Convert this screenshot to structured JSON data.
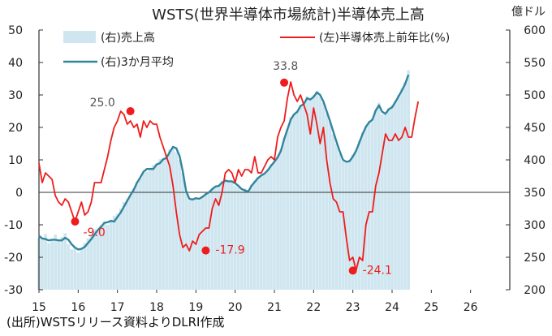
{
  "chart_data": {
    "type": "bar+line",
    "title": "WSTS(世界半導体市場統計)半導体売上高",
    "right_axis_unit": "億ドル",
    "source": "(出所)WSTSリリース資料よりDLRI作成",
    "x_ticks": [
      "15",
      "16",
      "17",
      "18",
      "19",
      "20",
      "21",
      "22",
      "23",
      "24",
      "25",
      "26"
    ],
    "x_range": [
      2015.0,
      2027.0
    ],
    "left_axis": {
      "ticks": [
        50,
        40,
        30,
        20,
        10,
        0,
        -10,
        -20,
        -30
      ],
      "range": [
        -30,
        50
      ]
    },
    "right_axis": {
      "ticks": [
        600,
        550,
        500,
        450,
        400,
        350,
        300,
        250,
        200
      ],
      "range": [
        200,
        600
      ]
    },
    "legend": [
      {
        "key": "sales",
        "label": "(右)売上高"
      },
      {
        "key": "yoy",
        "label": "(左)半導体売上前年比(%)"
      },
      {
        "key": "ma3",
        "label": "(右)3か月平均"
      }
    ],
    "colors": {
      "sales": "#cfe6f0",
      "yoy": "#ee1c1c",
      "ma3": "#31859c",
      "axis": "#333333"
    },
    "annotations": [
      {
        "label": "25.0",
        "t": 2017.33,
        "value": 25.0,
        "color": "#555555"
      },
      {
        "label": "-9.0",
        "t": 2015.92,
        "value": -9.0,
        "color": "#ee1c1c"
      },
      {
        "label": "-17.9",
        "t": 2019.25,
        "value": -17.9,
        "color": "#ee1c1c"
      },
      {
        "label": "33.8",
        "t": 2021.25,
        "value": 33.8,
        "color": "#555555"
      },
      {
        "label": "-24.1",
        "t": 2023.0,
        "value": -24.1,
        "color": "#ee1c1c"
      }
    ],
    "series": [
      {
        "key": "yoy",
        "axis": "left",
        "t0": 2015.0,
        "step": 0.08333,
        "values": [
          9,
          3,
          6,
          5,
          4,
          -1,
          -3,
          -4,
          -2,
          -3,
          -6,
          -9,
          -6,
          -3,
          -7,
          -6,
          -3,
          3,
          3,
          3,
          7,
          11,
          16,
          20,
          22,
          25,
          24,
          21,
          22,
          20,
          21,
          17,
          22,
          20,
          22,
          21,
          21,
          17,
          14,
          11,
          8,
          2,
          -6,
          -13,
          -17,
          -16,
          -18,
          -15,
          -16,
          -13,
          -12,
          -11,
          -11,
          -5,
          -2,
          -4,
          0,
          6,
          7,
          6,
          3,
          7,
          5,
          7,
          7,
          6,
          11,
          6,
          6,
          8,
          10,
          11,
          10,
          17,
          20,
          22,
          29,
          34,
          30,
          28,
          30,
          27,
          24,
          18,
          26,
          21,
          15,
          20,
          10,
          3,
          -2,
          -3,
          -6,
          -6,
          -14,
          -21,
          -20,
          -24,
          -20,
          -21,
          -10,
          -6,
          -6,
          2,
          6,
          12,
          18,
          16,
          16,
          18,
          16,
          17,
          20,
          17,
          17,
          23,
          28
        ]
      },
      {
        "key": "ma3",
        "axis": "right",
        "t0": 2015.0,
        "step": 0.08333,
        "values": [
          283,
          279,
          278,
          276,
          277,
          277,
          276,
          276,
          280,
          277,
          270,
          265,
          262,
          263,
          266,
          272,
          278,
          285,
          292,
          297,
          303,
          304,
          306,
          305,
          312,
          319,
          328,
          337,
          346,
          354,
          365,
          373,
          382,
          386,
          386,
          386,
          393,
          395,
          401,
          403,
          412,
          420,
          418,
          406,
          382,
          352,
          340,
          339,
          341,
          340,
          343,
          347,
          350,
          355,
          359,
          360,
          365,
          368,
          367,
          367,
          364,
          360,
          355,
          353,
          351,
          360,
          366,
          372,
          376,
          379,
          384,
          391,
          397,
          404,
          414,
          432,
          447,
          462,
          470,
          474,
          483,
          486,
          495,
          493,
          497,
          504,
          500,
          490,
          475,
          460,
          444,
          428,
          413,
          400,
          397,
          398,
          405,
          414,
          427,
          440,
          451,
          458,
          462,
          476,
          484,
          474,
          471,
          478,
          481,
          489,
          498,
          507,
          517,
          531
        ]
      },
      {
        "key": "sales",
        "axis": "right",
        "t0": 2015.0,
        "step": 0.08333,
        "values": [
          280,
          278,
          286,
          272,
          278,
          285,
          275,
          281,
          287,
          270,
          262,
          266,
          257,
          264,
          272,
          279,
          284,
          293,
          290,
          300,
          305,
          300,
          308,
          314,
          317,
          325,
          335,
          340,
          346,
          356,
          366,
          372,
          381,
          382,
          388,
          392,
          394,
          401,
          402,
          408,
          416,
          420,
          412,
          400,
          380,
          350,
          338,
          338,
          342,
          338,
          345,
          349,
          352,
          356,
          358,
          360,
          368,
          370,
          366,
          368,
          360,
          358,
          352,
          356,
          350,
          362,
          368,
          374,
          378,
          378,
          386,
          393,
          398,
          405,
          416,
          434,
          448,
          466,
          470,
          476,
          485,
          486,
          498,
          494,
          500,
          506,
          498,
          488,
          472,
          458,
          440,
          425,
          410,
          398,
          395,
          400,
          408,
          416,
          430,
          442,
          452,
          460,
          464,
          478,
          488,
          470,
          470,
          480,
          484,
          492,
          500,
          510,
          520,
          538
        ]
      }
    ]
  }
}
